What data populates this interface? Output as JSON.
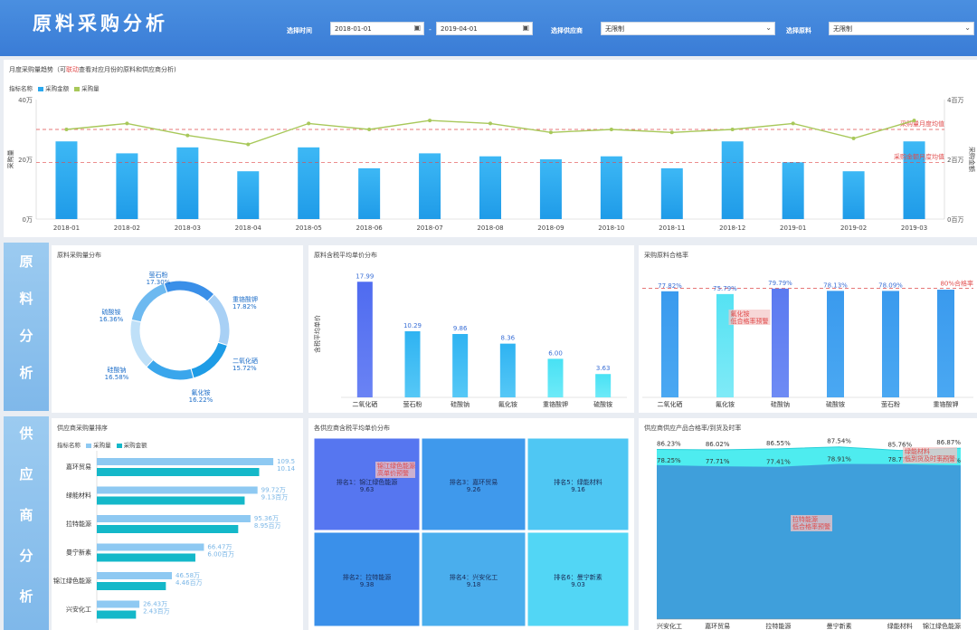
{
  "header": {
    "title": "原料采购分析",
    "date_label": "选择时间",
    "date_start": "2018-01-01",
    "date_sep": "-",
    "date_end": "2019-04-01",
    "supplier_label": "选择供应商",
    "supplier_value": "无限制",
    "material_label": "选择原料",
    "material_value": "无限制",
    "calendar_icon": "calendar-icon",
    "dropdown_icon": "chevron-down-icon"
  },
  "colors": {
    "header": "#3a7cd6",
    "bar": "#2aa8ee",
    "line": "#a8c85a",
    "ref": "#e04b4b",
    "side": "#8cc2ee"
  },
  "trend": {
    "title_prefix": "月度采购量趋势（可",
    "title_link": "联动",
    "title_suffix": "查看对应月份的原料和供应商分析)",
    "legend_label": "指标名称",
    "legend_amount": "采购金额",
    "legend_qty": "采购量",
    "ylabel_left": "采购量",
    "ylabel_right": "采购金额",
    "ref_qty_label": "采购量月度均值",
    "ref_amount_label": "采购金额月度均值"
  },
  "trend_chart": {
    "type": "bar",
    "categories": [
      "2018-01",
      "2018-02",
      "2018-03",
      "2018-04",
      "2018-05",
      "2018-06",
      "2018-07",
      "2018-08",
      "2018-09",
      "2018-10",
      "2018-11",
      "2018-12",
      "2019-01",
      "2019-02",
      "2019-03"
    ],
    "series": [
      {
        "name": "采购金额",
        "values": [
          2.6,
          2.2,
          2.4,
          1.6,
          2.4,
          1.7,
          2.2,
          2.1,
          2.0,
          2.1,
          1.7,
          2.6,
          1.9,
          1.6,
          2.6
        ]
      },
      {
        "name": "采购量",
        "values": [
          30,
          32,
          28,
          25,
          32,
          30,
          33,
          32,
          29,
          30,
          29,
          30,
          32,
          27,
          33
        ]
      }
    ],
    "left_ticks": [
      "0万",
      "20万",
      "40万"
    ],
    "right_ticks": [
      "0百万",
      "2百万",
      "4百万"
    ],
    "ref_qty": 30,
    "ref_amount": 1.9,
    "ylim_left": [
      0,
      40
    ],
    "ylim_right": [
      0,
      4
    ]
  },
  "side_labels": {
    "material": [
      "原",
      "料",
      "分",
      "析"
    ],
    "supplier": [
      "供",
      "应",
      "商",
      "分",
      "析"
    ]
  },
  "donut": {
    "title": "原料采购量分布",
    "items": [
      {
        "name": "萤石粉",
        "pct": "17.30%"
      },
      {
        "name": "重铬酸钾",
        "pct": "17.82%"
      },
      {
        "name": "二氧化硒",
        "pct": "15.72%"
      },
      {
        "name": "氟化铵",
        "pct": "16.22%"
      },
      {
        "name": "硅酸钠",
        "pct": "16.58%"
      },
      {
        "name": "硫酸铵",
        "pct": "16.36%"
      }
    ]
  },
  "unit_price": {
    "title": "原料含税平均单价分布",
    "ylabel": "含税平均单价",
    "categories": [
      "二氧化硒",
      "萤石粉",
      "硅酸钠",
      "氟化铵",
      "重铬酸钾",
      "硫酸铵"
    ],
    "values": [
      17.99,
      10.29,
      9.86,
      8.36,
      6.0,
      3.63
    ],
    "labels": [
      "17.99",
      "10.29",
      "9.86",
      "8.36",
      "6.00",
      "3.63"
    ]
  },
  "pass_rate": {
    "title": "采购原料合格率",
    "categories": [
      "二氧化硒",
      "氟化铵",
      "硅酸钠",
      "硫酸铵",
      "萤石粉",
      "重铬酸钾"
    ],
    "values": [
      77.82,
      75.79,
      79.79,
      78.13,
      78.09,
      79.0
    ],
    "labels": [
      "77.82%",
      "75.79%",
      "79.79%",
      "78.13%",
      "78.09%",
      ""
    ],
    "target_label": "80%合格率",
    "warn_l1": "氟化铵",
    "warn_l2": "低合格率预警"
  },
  "supplier_rank": {
    "title": "供应商采购量排序",
    "legend_label": "指标名称",
    "legend_qty": "采购量",
    "legend_amount": "采购金额",
    "rows": [
      {
        "name": "嘉环贸易",
        "qty_label": "109.5",
        "amt_label": "10.14"
      },
      {
        "name": "绿能材料",
        "qty_label": "99.72万",
        "amt_label": "9.13百万"
      },
      {
        "name": "拉特能源",
        "qty_label": "95.36万",
        "amt_label": "8.95百万"
      },
      {
        "name": "曼宁新素",
        "qty_label": "66.47万",
        "amt_label": "6.00百万"
      },
      {
        "name": "锦江绿色能源",
        "qty_label": "46.58万",
        "amt_label": "4.46百万"
      },
      {
        "name": "兴安化工",
        "qty_label": "26.43万",
        "amt_label": "2.43百万"
      }
    ],
    "qty_values": [
      109.5,
      99.72,
      95.36,
      66.47,
      46.58,
      26.43
    ]
  },
  "treemap": {
    "title": "各供应商含税平均单价分布",
    "cells": [
      {
        "name": "排名1：锦江绿色能源",
        "value": "9.63",
        "warn1": "锦江绿色能源",
        "warn2": "高单价预警"
      },
      {
        "name": "排名3：嘉环贸易",
        "value": "9.26"
      },
      {
        "name": "排名5：绿能材料",
        "value": "9.16"
      },
      {
        "name": "排名2：拉特能源",
        "value": "9.38"
      },
      {
        "name": "排名4：兴安化工",
        "value": "9.18"
      },
      {
        "name": "排名6：曼宁新素",
        "value": "9.03"
      }
    ]
  },
  "supplier_quality": {
    "title": "供应商供应产品合格率/到货及时率",
    "categories": [
      "兴安化工",
      "嘉环贸易",
      "拉特能源",
      "曼宁新素",
      "绿能材料",
      "锦江绿色能源"
    ],
    "top_values": [
      86.23,
      86.02,
      86.55,
      87.54,
      85.76,
      86.87
    ],
    "bottom_values": [
      78.25,
      77.71,
      77.41,
      78.91,
      78.77,
      78.13
    ],
    "top_labels": [
      "86.23%",
      "86.02%",
      "86.55%",
      "87.54%",
      "85.76%",
      "86.87%"
    ],
    "bottom_labels": [
      "78.25%",
      "77.71%",
      "77.41%",
      "78.91%",
      "78.77%",
      "78.13%"
    ],
    "warn_a1": "绿能材料",
    "warn_a2": "低到货及时率预警",
    "warn_b1": "拉特能源",
    "warn_b2": "低合格率预警"
  }
}
